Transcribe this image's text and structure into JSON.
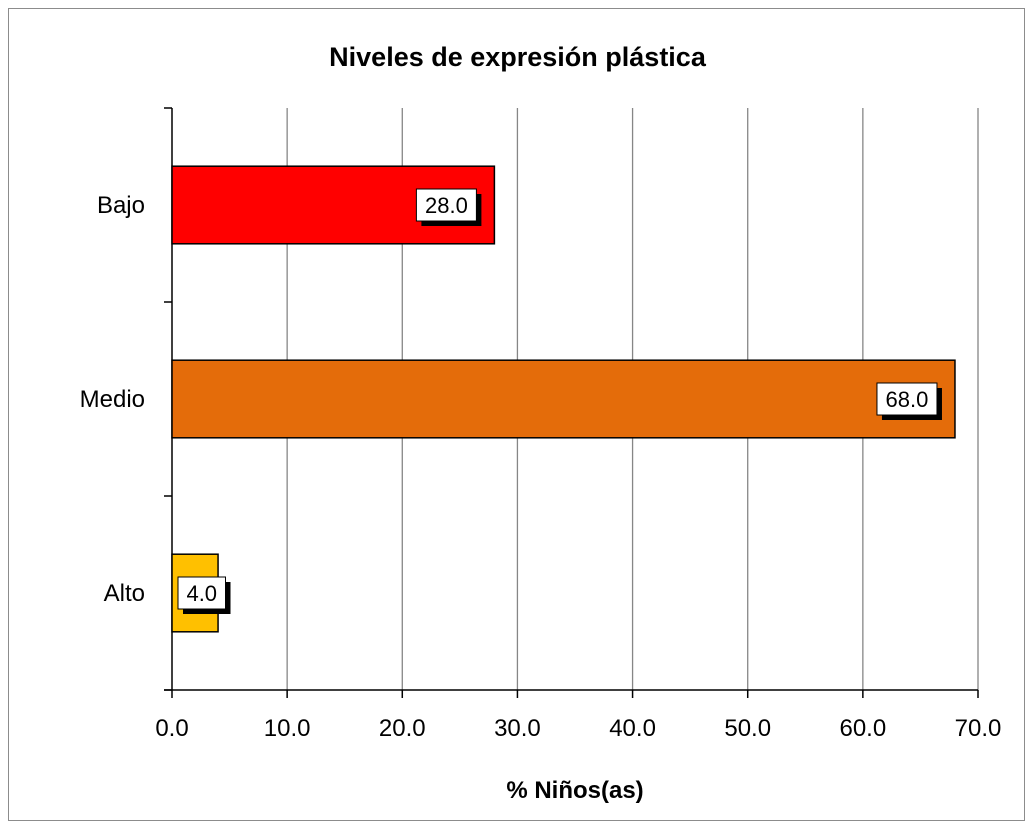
{
  "chart_data": {
    "type": "bar",
    "orientation": "horizontal",
    "title": "Niveles de expresión plástica",
    "xlabel": "% Niños(as)",
    "ylabel": "",
    "categories": [
      "Bajo",
      "Medio",
      "Alto"
    ],
    "values": [
      28.0,
      68.0,
      4.0
    ],
    "data_labels": [
      "28.0",
      "68.0",
      "4.0"
    ],
    "bar_colors": [
      "#ff0000",
      "#e46c0a",
      "#ffc000"
    ],
    "xlim": [
      0,
      70
    ],
    "xticks": [
      0,
      10,
      20,
      30,
      40,
      50,
      60,
      70
    ],
    "xtick_labels": [
      "0.0",
      "10.0",
      "20.0",
      "30.0",
      "40.0",
      "50.0",
      "60.0",
      "70.0"
    ],
    "grid": "vertical",
    "legend": "none"
  }
}
